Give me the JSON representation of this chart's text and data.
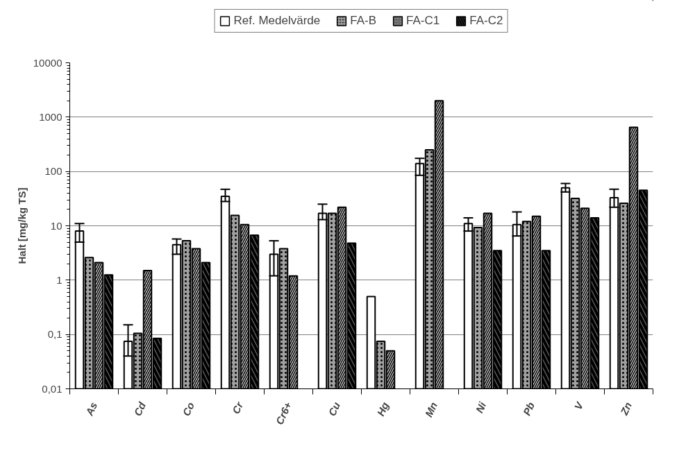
{
  "chart_data": {
    "type": "bar",
    "ylabel": "Halt [mg/kg TS]",
    "log": true,
    "grid": "y",
    "legend": "top",
    "categories": [
      "As",
      "Cd",
      "Co",
      "Cr",
      "Cr6+",
      "Cu",
      "Hg",
      "Mn",
      "Ni",
      "Pb",
      "V",
      "Zn"
    ],
    "ylim": [
      0.01,
      10000
    ],
    "yticks": [
      {
        "value": 0.01,
        "label": "0,01"
      },
      {
        "value": 0.1,
        "label": "0,1"
      },
      1,
      10,
      100,
      1000,
      10000
    ],
    "series": [
      {
        "name": "Ref. Medelvärde",
        "color": "#ffffff",
        "values": [
          8,
          0.075,
          4.5,
          35,
          3,
          17,
          0.5,
          140,
          11,
          10.5,
          50,
          33
        ],
        "errors": [
          [
            5,
            11
          ],
          [
            0.04,
            0.15
          ],
          [
            3,
            5.7
          ],
          [
            28,
            47
          ],
          [
            1.2,
            5.3
          ],
          [
            13,
            25
          ],
          null,
          [
            85,
            175
          ],
          [
            8,
            14
          ],
          [
            6.5,
            18
          ],
          [
            42,
            60
          ],
          [
            22,
            47
          ]
        ]
      },
      {
        "name": "FA-B",
        "color": "#a0a0a0",
        "values": [
          2.6,
          0.105,
          5.3,
          15.5,
          3.8,
          17,
          0.075,
          250,
          9.3,
          12,
          32,
          26
        ]
      },
      {
        "name": "FA-C1",
        "color": "#d0d0d0",
        "values": [
          2.1,
          1.5,
          3.8,
          10.5,
          1.2,
          22,
          0.05,
          2000,
          17,
          15,
          21,
          650
        ]
      },
      {
        "name": "FA-C2",
        "color": "#606060",
        "values": [
          1.25,
          0.085,
          2.1,
          6.7,
          null,
          4.8,
          null,
          null,
          3.5,
          3.5,
          14,
          45
        ]
      }
    ]
  }
}
